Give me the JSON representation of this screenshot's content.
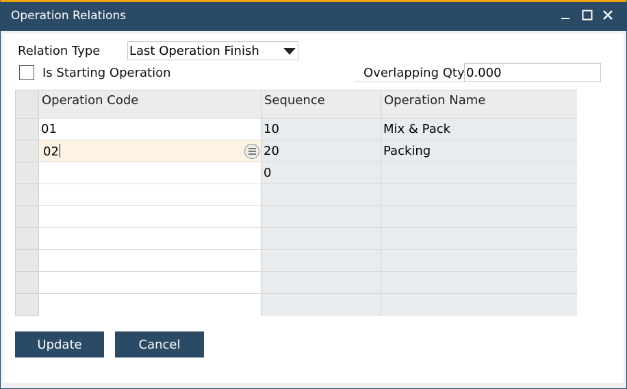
{
  "window": {
    "title": "Operation Relations"
  },
  "form": {
    "relation_type_label": "Relation Type",
    "relation_type_value": "Last Operation Finish",
    "is_starting_label": "Is Starting Operation",
    "is_starting_checked": false,
    "overlapping_label": "Overlapping Qty",
    "overlapping_value": "0.000"
  },
  "grid": {
    "columns": [
      "Operation Code",
      "Sequence",
      "Operation Name"
    ],
    "rows": [
      {
        "code": "01",
        "sequence": "10",
        "name": "Mix & Pack"
      },
      {
        "code": "02",
        "sequence": "20",
        "name": "Packing"
      },
      {
        "code": "",
        "sequence": "0",
        "name": ""
      },
      {
        "code": "",
        "sequence": "",
        "name": ""
      },
      {
        "code": "",
        "sequence": "",
        "name": ""
      },
      {
        "code": "",
        "sequence": "",
        "name": ""
      },
      {
        "code": "",
        "sequence": "",
        "name": ""
      },
      {
        "code": "",
        "sequence": "",
        "name": ""
      },
      {
        "code": "",
        "sequence": "",
        "name": ""
      }
    ]
  },
  "buttons": {
    "update": "Update",
    "cancel": "Cancel"
  },
  "colors": {
    "titlebar": "#2b4a66",
    "accent": "#f0a30a",
    "active_cell": "#fdf3e4"
  }
}
